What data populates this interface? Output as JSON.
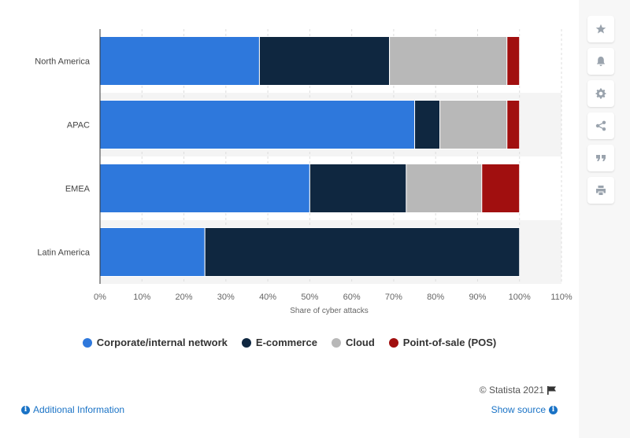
{
  "chart_data": {
    "type": "bar",
    "orientation": "horizontal",
    "stacked": true,
    "categories": [
      "North America",
      "APAC",
      "EMEA",
      "Latin America"
    ],
    "series": [
      {
        "name": "Corporate/internal network",
        "color": "#2e78dc",
        "values": [
          38,
          75,
          50,
          25
        ]
      },
      {
        "name": "E-commerce",
        "color": "#0f2740",
        "values": [
          31,
          6,
          23,
          75
        ]
      },
      {
        "name": "Cloud",
        "color": "#b8b8b8",
        "values": [
          28,
          16,
          18,
          0
        ]
      },
      {
        "name": "Point-of-sale (POS)",
        "color": "#a10f0f",
        "values": [
          3,
          3,
          9,
          0
        ]
      }
    ],
    "xlabel": "Share of cyber attacks",
    "ylabel": "",
    "xlim": [
      0,
      110
    ],
    "xticks": [
      "0%",
      "10%",
      "20%",
      "30%",
      "40%",
      "50%",
      "60%",
      "70%",
      "80%",
      "90%",
      "100%",
      "110%"
    ],
    "grid": true,
    "legend_position": "bottom"
  },
  "toolbar": {
    "icons": [
      "star-icon",
      "bell-icon",
      "gear-icon",
      "share-icon",
      "quote-icon",
      "print-icon"
    ]
  },
  "footer": {
    "credit": "© Statista 2021",
    "additional_info": "Additional Information",
    "show_source": "Show source"
  }
}
